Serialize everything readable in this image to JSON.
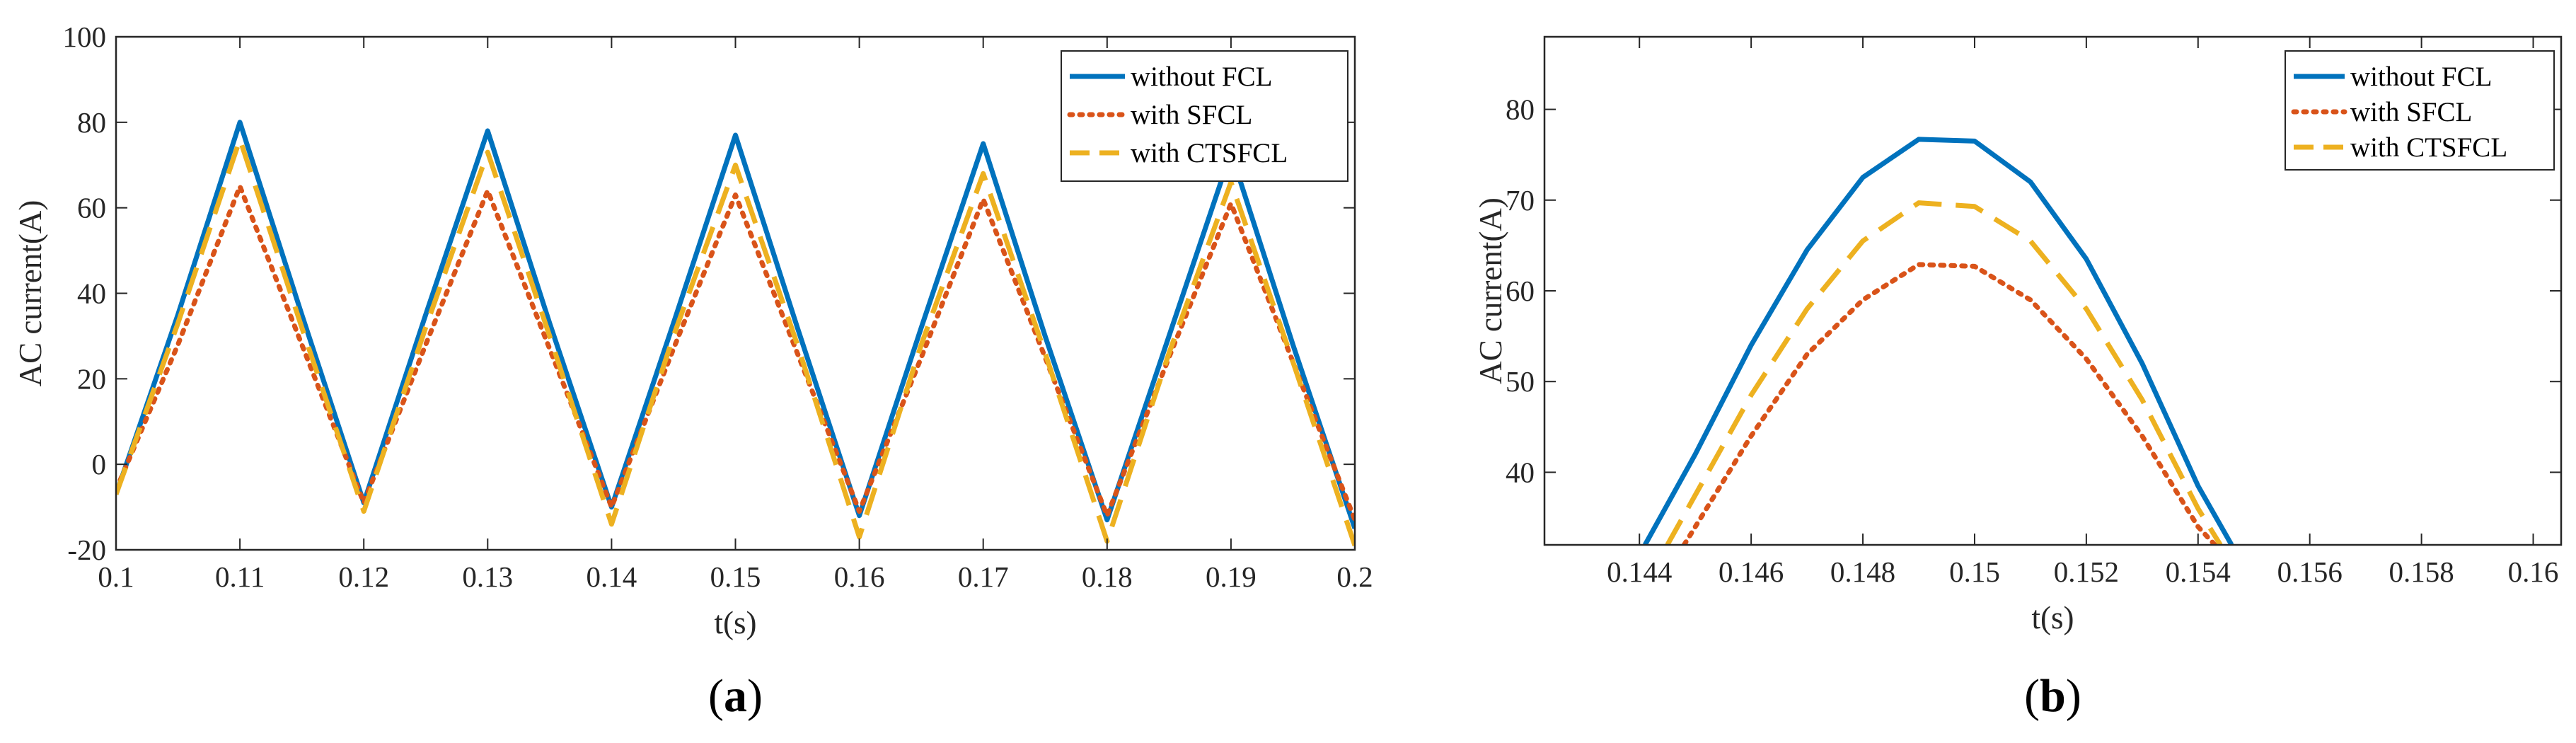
{
  "chart_data": [
    {
      "type": "line",
      "panel_label": "(a)",
      "xlabel": "t(s)",
      "ylabel": "AC current(A)",
      "xlim": [
        0.1,
        0.2
      ],
      "ylim": [
        -20,
        100
      ],
      "xticks": [
        0.1,
        0.11,
        0.12,
        0.13,
        0.14,
        0.15,
        0.16,
        0.17,
        0.18,
        0.19,
        0.2
      ],
      "yticks": [
        -20,
        0,
        20,
        40,
        60,
        80,
        100
      ],
      "xtick_labels": [
        "0.1",
        "0.11",
        "0.12",
        "0.13",
        "0.14",
        "0.15",
        "0.16",
        "0.17",
        "0.18",
        "0.19",
        "0.2"
      ],
      "ytick_labels": [
        "-20",
        "0",
        "20",
        "40",
        "60",
        "80",
        "100"
      ],
      "grid": false,
      "legend_position": "top-right",
      "series": [
        {
          "name": "without FCL",
          "color": "#0072BD",
          "style": "solid",
          "x": [
            0.1,
            0.105,
            0.11,
            0.115,
            0.12,
            0.125,
            0.13,
            0.135,
            0.14,
            0.145,
            0.15,
            0.155,
            0.16,
            0.165,
            0.17,
            0.175,
            0.18,
            0.185,
            0.19,
            0.195,
            0.2
          ],
          "y": [
            -7,
            35,
            80,
            35,
            -9,
            35,
            78,
            33,
            -10,
            33,
            77,
            32,
            -12,
            32,
            75,
            30,
            -13,
            30,
            73,
            28,
            -15
          ]
        },
        {
          "name": "with SFCL",
          "color": "#D95319",
          "style": "dotted",
          "x": [
            0.1,
            0.105,
            0.11,
            0.115,
            0.12,
            0.125,
            0.13,
            0.135,
            0.14,
            0.145,
            0.15,
            0.155,
            0.16,
            0.165,
            0.17,
            0.175,
            0.18,
            0.185,
            0.19,
            0.195,
            0.2
          ],
          "y": [
            -6,
            28,
            65,
            28,
            -9,
            28,
            64,
            27,
            -10,
            27,
            63,
            26,
            -11,
            25,
            62,
            25,
            -12,
            25,
            61,
            24,
            -13
          ]
        },
        {
          "name": "with CTSFCL",
          "color": "#EDB120",
          "style": "dashed",
          "x": [
            0.1,
            0.105,
            0.11,
            0.115,
            0.12,
            0.125,
            0.13,
            0.135,
            0.14,
            0.145,
            0.15,
            0.155,
            0.16,
            0.165,
            0.17,
            0.175,
            0.18,
            0.185,
            0.19,
            0.195,
            0.2
          ],
          "y": [
            -7,
            33,
            76,
            32,
            -11,
            32,
            73,
            30,
            -14,
            30,
            70,
            28,
            -17,
            28,
            68,
            26,
            -18,
            26,
            66,
            24,
            -19
          ]
        }
      ]
    },
    {
      "type": "line",
      "panel_label": "(b)",
      "xlabel": "t(s)",
      "ylabel": "AC current(A)",
      "xlim": [
        0.1423,
        0.1605
      ],
      "ylim": [
        32,
        88
      ],
      "xticks": [
        0.144,
        0.146,
        0.148,
        0.15,
        0.152,
        0.154,
        0.156,
        0.158,
        0.16
      ],
      "yticks": [
        40,
        50,
        60,
        70,
        80
      ],
      "xtick_labels": [
        "0.144",
        "0.146",
        "0.148",
        "0.15",
        "0.152",
        "0.154",
        "0.156",
        "0.158",
        "0.16"
      ],
      "ytick_labels": [
        "40",
        "50",
        "60",
        "70",
        "80"
      ],
      "grid": false,
      "legend_position": "top-right",
      "series": [
        {
          "name": "without FCL",
          "color": "#0072BD",
          "style": "solid",
          "x": [
            0.1441,
            0.145,
            0.146,
            0.147,
            0.148,
            0.149,
            0.15,
            0.151,
            0.152,
            0.153,
            0.154,
            0.1546
          ],
          "y": [
            32,
            42,
            54,
            64.5,
            72.5,
            76.7,
            76.5,
            72,
            63.5,
            52,
            38.5,
            32
          ]
        },
        {
          "name": "with SFCL",
          "color": "#D95319",
          "style": "dotted",
          "x": [
            0.1448,
            0.145,
            0.146,
            0.147,
            0.148,
            0.149,
            0.15,
            0.151,
            0.152,
            0.153,
            0.154,
            0.1543
          ],
          "y": [
            32,
            34,
            44,
            53,
            59,
            62.9,
            62.7,
            59,
            52.5,
            44,
            34,
            32
          ]
        },
        {
          "name": "with CTSFCL",
          "color": "#EDB120",
          "style": "dashed",
          "x": [
            0.1445,
            0.145,
            0.146,
            0.147,
            0.148,
            0.149,
            0.15,
            0.151,
            0.152,
            0.153,
            0.154,
            0.1544
          ],
          "y": [
            32,
            37.5,
            48.5,
            58,
            65.5,
            69.7,
            69.3,
            65.5,
            58,
            48,
            36,
            32
          ]
        }
      ]
    }
  ]
}
